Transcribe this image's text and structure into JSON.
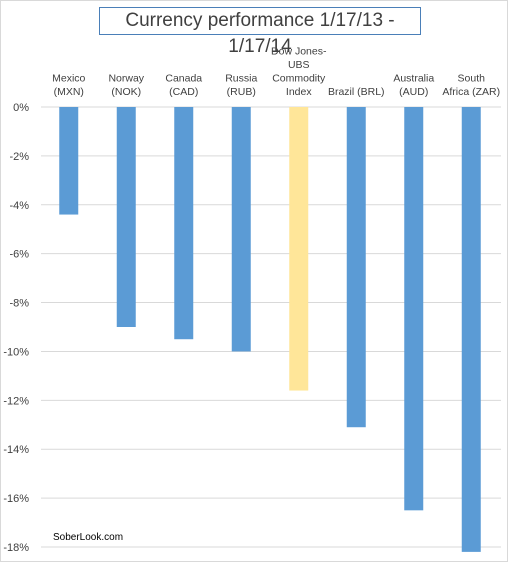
{
  "chart_data": {
    "type": "bar",
    "title": "Currency performance 1/17/13 - 1/17/14",
    "categories": [
      [
        "Mexico",
        "(MXN)"
      ],
      [
        "Norway",
        "(NOK)"
      ],
      [
        "Canada",
        "(CAD)"
      ],
      [
        "Russia",
        "(RUB)"
      ],
      [
        "Dow Jones-",
        "UBS",
        "Commodity",
        "Index"
      ],
      [
        "Brazil (BRL)"
      ],
      [
        "Australia",
        "(AUD)"
      ],
      [
        "South",
        "Africa (ZAR)"
      ]
    ],
    "values": [
      -4.4,
      -9.0,
      -9.5,
      -10.0,
      -11.6,
      -13.1,
      -16.5,
      -18.2
    ],
    "bar_colors": [
      "#5b9bd5",
      "#5b9bd5",
      "#5b9bd5",
      "#5b9bd5",
      "#ffe699",
      "#5b9bd5",
      "#5b9bd5",
      "#5b9bd5"
    ],
    "ylim": [
      -18,
      0
    ],
    "yticks": [
      0,
      -2,
      -4,
      -6,
      -8,
      -10,
      -12,
      -14,
      -16,
      -18
    ],
    "ytick_labels": [
      "0%",
      "-2%",
      "-4%",
      "-6%",
      "-8%",
      "-10%",
      "-12%",
      "-14%",
      "-16%",
      "-18%"
    ],
    "grid": true,
    "xlabel": "",
    "ylabel": "",
    "source": "SoberLook.com"
  }
}
